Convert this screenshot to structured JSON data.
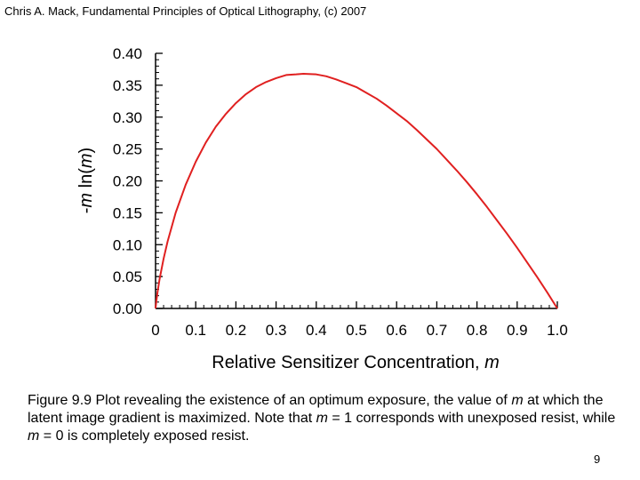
{
  "header": "Chris A. Mack, Fundamental Principles of Optical Lithography, (c) 2007",
  "caption": {
    "part1": "Figure 9.9 Plot revealing the existence of an optimum exposure, the value of ",
    "m1": "m",
    "part2": " at which the latent image gradient is maximized. Note that ",
    "m2": "m",
    "part3": " = 1 corresponds with unexposed resist, while ",
    "m3": "m",
    "part4": " = 0 is completely exposed resist."
  },
  "page_number": "9",
  "chart_data": {
    "type": "line",
    "title": "",
    "xlabel": "Relative Sensitizer Concentration, ",
    "xlabel_var": "m",
    "ylabel_prefix": "-",
    "ylabel_var1": "m",
    "ylabel_mid": " ln(",
    "ylabel_var2": "m",
    "ylabel_suffix": ")",
    "xlim": [
      0,
      1
    ],
    "ylim": [
      0,
      0.4
    ],
    "x_ticks": [
      "0",
      "0.1",
      "0.2",
      "0.3",
      "0.4",
      "0.5",
      "0.6",
      "0.7",
      "0.8",
      "0.9",
      "1.0"
    ],
    "y_ticks": [
      "0.00",
      "0.05",
      "0.10",
      "0.15",
      "0.20",
      "0.25",
      "0.30",
      "0.35",
      "0.40"
    ],
    "grid": false,
    "line_color": "#e02020",
    "series": [
      {
        "name": "-m ln(m)",
        "x": [
          0.002,
          0.005,
          0.01,
          0.02,
          0.03,
          0.05,
          0.075,
          0.1,
          0.125,
          0.15,
          0.175,
          0.2,
          0.225,
          0.25,
          0.275,
          0.3,
          0.325,
          0.35,
          0.368,
          0.4,
          0.425,
          0.45,
          0.475,
          0.5,
          0.525,
          0.55,
          0.575,
          0.6,
          0.625,
          0.65,
          0.675,
          0.7,
          0.725,
          0.75,
          0.775,
          0.8,
          0.825,
          0.85,
          0.875,
          0.9,
          0.925,
          0.95,
          0.975,
          1.0
        ],
        "y": [
          0.012,
          0.026,
          0.046,
          0.078,
          0.105,
          0.15,
          0.194,
          0.23,
          0.26,
          0.285,
          0.305,
          0.322,
          0.336,
          0.347,
          0.355,
          0.361,
          0.366,
          0.367,
          0.368,
          0.367,
          0.364,
          0.359,
          0.353,
          0.347,
          0.338,
          0.329,
          0.318,
          0.306,
          0.294,
          0.28,
          0.265,
          0.25,
          0.233,
          0.216,
          0.198,
          0.179,
          0.159,
          0.138,
          0.117,
          0.095,
          0.072,
          0.049,
          0.025,
          0.0
        ]
      }
    ]
  }
}
